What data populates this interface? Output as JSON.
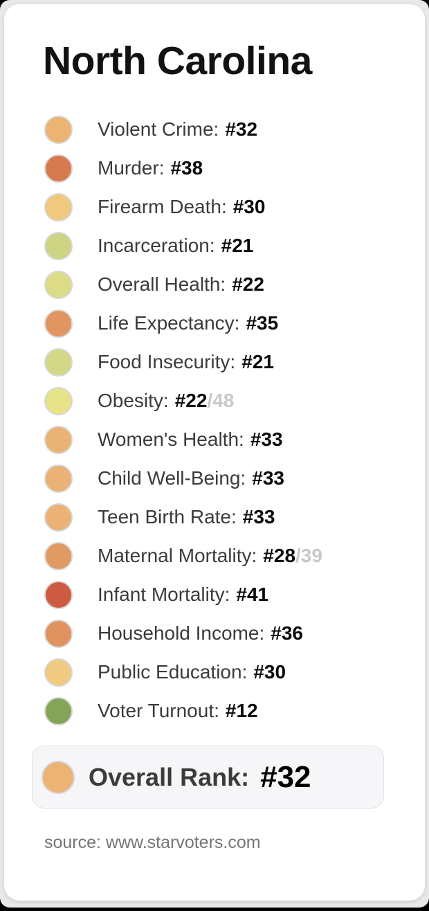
{
  "title": "North Carolina",
  "rows": [
    {
      "label": "Violent Crime:",
      "rank": "#32",
      "suffix": "",
      "color": "#ecb472"
    },
    {
      "label": "Murder:",
      "rank": "#38",
      "suffix": "",
      "color": "#d77a4e"
    },
    {
      "label": "Firearm Death:",
      "rank": "#30",
      "suffix": "",
      "color": "#f0c87e"
    },
    {
      "label": "Incarceration:",
      "rank": "#21",
      "suffix": "",
      "color": "#cdd584"
    },
    {
      "label": "Overall Health:",
      "rank": "#22",
      "suffix": "",
      "color": "#dcdc86"
    },
    {
      "label": "Life Expectancy:",
      "rank": "#35",
      "suffix": "",
      "color": "#e19560"
    },
    {
      "label": "Food Insecurity:",
      "rank": "#21",
      "suffix": "",
      "color": "#d2d886"
    },
    {
      "label": "Obesity:",
      "rank": "#22",
      "suffix": "/48",
      "color": "#e6e388"
    },
    {
      "label": "Women's Health:",
      "rank": "#33",
      "suffix": "",
      "color": "#eab275"
    },
    {
      "label": "Child Well-Being:",
      "rank": "#33",
      "suffix": "",
      "color": "#eab275"
    },
    {
      "label": "Teen Birth Rate:",
      "rank": "#33",
      "suffix": "",
      "color": "#eab275"
    },
    {
      "label": "Maternal Mortality:",
      "rank": "#28",
      "suffix": "/39",
      "color": "#e29a63"
    },
    {
      "label": "Infant Mortality:",
      "rank": "#41",
      "suffix": "",
      "color": "#cd5b42"
    },
    {
      "label": "Household Income:",
      "rank": "#36",
      "suffix": "",
      "color": "#e0935e"
    },
    {
      "label": "Public Education:",
      "rank": "#30",
      "suffix": "",
      "color": "#f0ca80"
    },
    {
      "label": "Voter Turnout:",
      "rank": "#12",
      "suffix": "",
      "color": "#84a457"
    }
  ],
  "overall": {
    "label": "Overall Rank:",
    "rank": "#32",
    "color": "#ecb375"
  },
  "source": "source: www.starvoters.com",
  "colors": {
    "card_background": "#ffffff",
    "page_background": "#e8e8e9",
    "dot_border": "#d7d7d7",
    "overall_box_background": "#f6f6f8",
    "overall_box_border": "#e2e2e5",
    "label_text": "#3b3b3b",
    "rank_text": "#0a0a0a",
    "denominator_text": "#c9c9c9",
    "source_text": "#757575"
  }
}
